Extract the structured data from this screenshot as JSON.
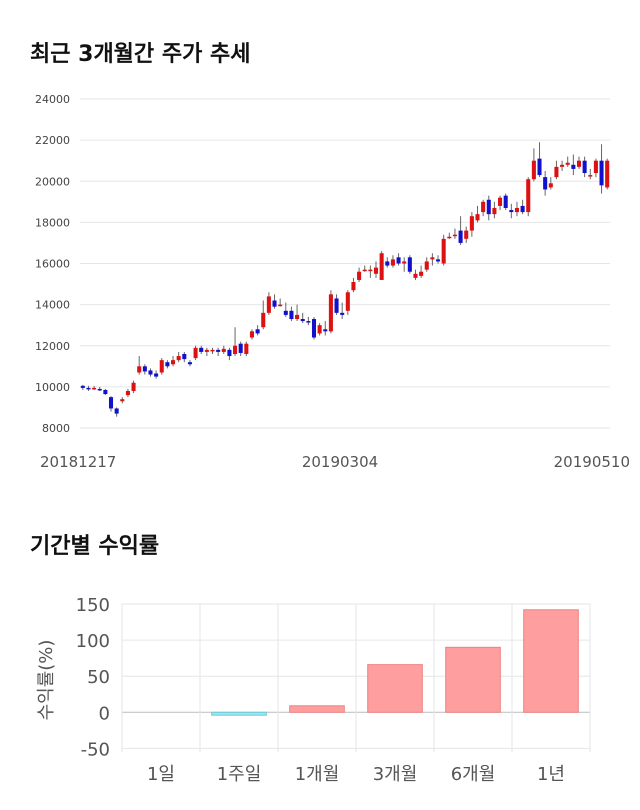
{
  "sections": {
    "price_title": "최근 3개월간 주가 추세",
    "returns_title": "기간별 수익률"
  },
  "chart_data": [
    {
      "type": "candlestick",
      "y_ticks": [
        8000,
        10000,
        12000,
        14000,
        16000,
        18000,
        20000,
        22000,
        24000
      ],
      "ylim": [
        8000,
        24000
      ],
      "x_labels": [
        "20181217",
        "20190304",
        "20190510"
      ],
      "grid": true,
      "colors": {
        "up": "#dd1111",
        "down": "#1111cc"
      },
      "candles": [
        [
          10050,
          9950,
          10100,
          9850
        ],
        [
          9950,
          9900,
          10050,
          9800
        ],
        [
          9900,
          9950,
          10050,
          9850
        ],
        [
          9900,
          9850,
          10000,
          9800
        ],
        [
          9850,
          9650,
          9900,
          9600
        ],
        [
          9500,
          8950,
          9550,
          8800
        ],
        [
          8950,
          8700,
          9000,
          8550
        ],
        [
          9300,
          9400,
          9500,
          9200
        ],
        [
          9600,
          9800,
          9900,
          9500
        ],
        [
          9800,
          10200,
          10300,
          9700
        ],
        [
          10700,
          11000,
          11500,
          10600
        ],
        [
          11000,
          10750,
          11100,
          10600
        ],
        [
          10800,
          10600,
          10900,
          10500
        ],
        [
          10650,
          10500,
          10800,
          10400
        ],
        [
          10700,
          11300,
          11400,
          10600
        ],
        [
          11200,
          11000,
          11300,
          10900
        ],
        [
          11100,
          11300,
          11500,
          11000
        ],
        [
          11300,
          11500,
          11700,
          11200
        ],
        [
          11600,
          11350,
          11700,
          11200
        ],
        [
          11200,
          11100,
          11300,
          11000
        ],
        [
          11400,
          11900,
          12000,
          11300
        ],
        [
          11900,
          11700,
          12000,
          11600
        ],
        [
          11700,
          11800,
          11900,
          11500
        ],
        [
          11750,
          11800,
          11900,
          11600
        ],
        [
          11800,
          11700,
          11900,
          11500
        ],
        [
          11700,
          11850,
          12000,
          11600
        ],
        [
          11800,
          11500,
          11900,
          11300
        ],
        [
          11600,
          12000,
          12900,
          11500
        ],
        [
          12100,
          11650,
          12200,
          11500
        ],
        [
          11600,
          12100,
          12200,
          11500
        ],
        [
          12400,
          12700,
          12800,
          12300
        ],
        [
          12800,
          12600,
          13000,
          12500
        ],
        [
          12900,
          13600,
          14200,
          12800
        ],
        [
          13600,
          14400,
          14600,
          13500
        ],
        [
          14200,
          13900,
          14500,
          13800
        ],
        [
          14000,
          14000,
          14300,
          13900
        ],
        [
          13700,
          13500,
          14100,
          13400
        ],
        [
          13700,
          13300,
          13900,
          13200
        ],
        [
          13300,
          13500,
          14000,
          13200
        ],
        [
          13300,
          13200,
          13600,
          13100
        ],
        [
          13200,
          13150,
          13400,
          13000
        ],
        [
          13300,
          12400,
          13400,
          12300
        ],
        [
          12600,
          13000,
          13100,
          12500
        ],
        [
          12800,
          12700,
          13200,
          12500
        ],
        [
          12700,
          14500,
          14700,
          12600
        ],
        [
          14300,
          13600,
          14500,
          13500
        ],
        [
          13600,
          13500,
          14100,
          13300
        ],
        [
          13700,
          14600,
          14700,
          13500
        ],
        [
          14700,
          15100,
          15300,
          14600
        ],
        [
          15200,
          15600,
          15800,
          15100
        ],
        [
          15700,
          15700,
          15900,
          15600
        ],
        [
          15700,
          15700,
          15900,
          15300
        ],
        [
          15500,
          15800,
          16100,
          15300
        ],
        [
          15200,
          16500,
          16600,
          15200
        ],
        [
          16100,
          15900,
          16300,
          15800
        ],
        [
          15900,
          16200,
          16400,
          15800
        ],
        [
          16300,
          16000,
          16500,
          15900
        ],
        [
          16000,
          16100,
          16300,
          15600
        ],
        [
          16300,
          15600,
          16400,
          15500
        ],
        [
          15300,
          15500,
          15700,
          15200
        ],
        [
          15400,
          15600,
          15900,
          15300
        ],
        [
          15700,
          16100,
          16300,
          15600
        ],
        [
          16200,
          16300,
          16500,
          15900
        ],
        [
          16200,
          16100,
          16400,
          16000
        ],
        [
          16000,
          17200,
          17400,
          15900
        ],
        [
          17300,
          17300,
          17500,
          17200
        ],
        [
          17400,
          17400,
          17700,
          17200
        ],
        [
          17600,
          17000,
          18300,
          16900
        ],
        [
          17200,
          17600,
          17800,
          17000
        ],
        [
          17600,
          18300,
          18500,
          17300
        ],
        [
          18100,
          18400,
          18800,
          18000
        ],
        [
          18500,
          19000,
          19100,
          18300
        ],
        [
          19100,
          18400,
          19300,
          18100
        ],
        [
          18400,
          18700,
          19000,
          18200
        ],
        [
          18800,
          19200,
          19300,
          18600
        ],
        [
          19300,
          18700,
          19400,
          18600
        ],
        [
          18600,
          18500,
          18900,
          18200
        ],
        [
          18500,
          18700,
          19000,
          18300
        ],
        [
          18800,
          18500,
          19100,
          18400
        ],
        [
          18500,
          20100,
          20200,
          18300
        ],
        [
          20100,
          21000,
          21600,
          20000
        ],
        [
          21100,
          20300,
          21900,
          20200
        ],
        [
          20200,
          19600,
          20500,
          19300
        ],
        [
          19700,
          19900,
          20200,
          19600
        ],
        [
          20200,
          20700,
          21000,
          20100
        ],
        [
          20700,
          20800,
          21000,
          20500
        ],
        [
          20800,
          20900,
          21200,
          20700
        ],
        [
          20800,
          20600,
          21300,
          20300
        ],
        [
          20700,
          21000,
          21200,
          20600
        ],
        [
          21000,
          20400,
          21200,
          20200
        ],
        [
          20300,
          20300,
          20600,
          20100
        ],
        [
          20400,
          21000,
          21100,
          20200
        ],
        [
          21000,
          19800,
          21800,
          19400
        ],
        [
          19700,
          21000,
          21100,
          19600
        ]
      ]
    },
    {
      "type": "bar",
      "categories": [
        "1일",
        "1주일",
        "1개월",
        "3개월",
        "6개월",
        "1년"
      ],
      "values": [
        0,
        -4,
        9,
        66,
        90,
        142
      ],
      "ylabel": "수익률(%)",
      "y_ticks": [
        -50,
        0,
        50,
        100,
        150
      ],
      "ylim": [
        -55,
        150
      ],
      "grid": true,
      "colors": {
        "positive": "#ff9e9e",
        "negative": "#9ee8f0"
      }
    }
  ]
}
